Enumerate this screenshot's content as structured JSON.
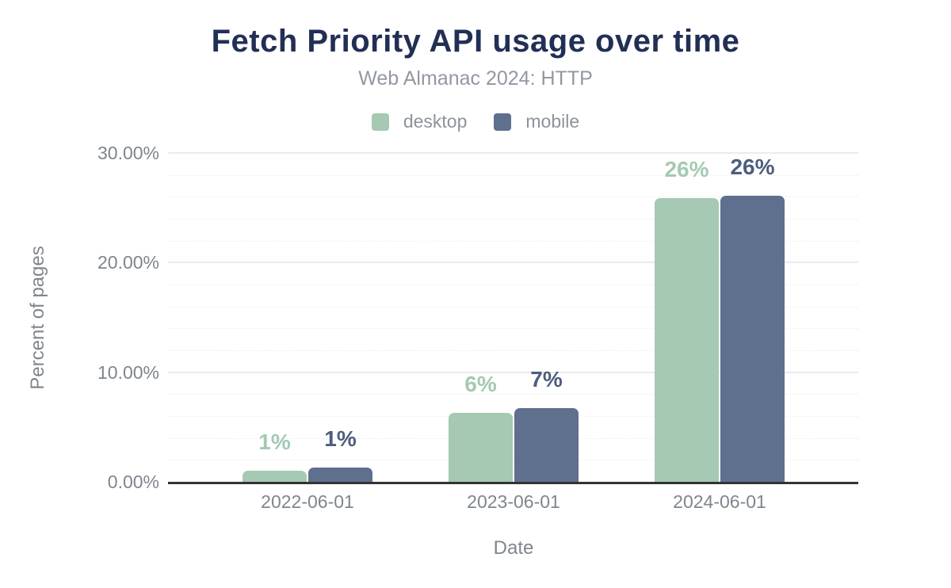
{
  "title": "Fetch Priority API usage over time",
  "subtitle": "Web Almanac 2024: HTTP",
  "legend": {
    "items": [
      {
        "label": "desktop",
        "color": "#a5c9b2"
      },
      {
        "label": "mobile",
        "color": "#5f6f8e"
      }
    ]
  },
  "colors": {
    "title_text": "#222f55",
    "desktop_series": "#a5c9b2",
    "mobile_series": "#5f6f8e",
    "mobile_value_label": "#4d5d7e",
    "axis_text": "#7f858f",
    "axis_line": "#333333"
  },
  "chart_data": {
    "type": "bar",
    "categories": [
      "2022-06-01",
      "2023-06-01",
      "2024-06-01"
    ],
    "series": [
      {
        "name": "desktop",
        "values": [
          1.0,
          6.3,
          25.9
        ],
        "labels": [
          "1%",
          "6%",
          "26%"
        ]
      },
      {
        "name": "mobile",
        "values": [
          1.3,
          6.7,
          26.1
        ],
        "labels": [
          "1%",
          "7%",
          "26%"
        ]
      }
    ],
    "title": "Fetch Priority API usage over time",
    "subtitle": "Web Almanac 2024: HTTP",
    "xlabel": "Date",
    "ylabel": "Percent of pages",
    "ylim": [
      0,
      30
    ],
    "y_ticks": [
      {
        "value": 0,
        "label": "0.00%"
      },
      {
        "value": 10,
        "label": "10.00%"
      },
      {
        "value": 20,
        "label": "20.00%"
      },
      {
        "value": 30,
        "label": "30.00%"
      }
    ],
    "minor_grid_step": 2,
    "grid": "on",
    "legend_position": "top"
  }
}
